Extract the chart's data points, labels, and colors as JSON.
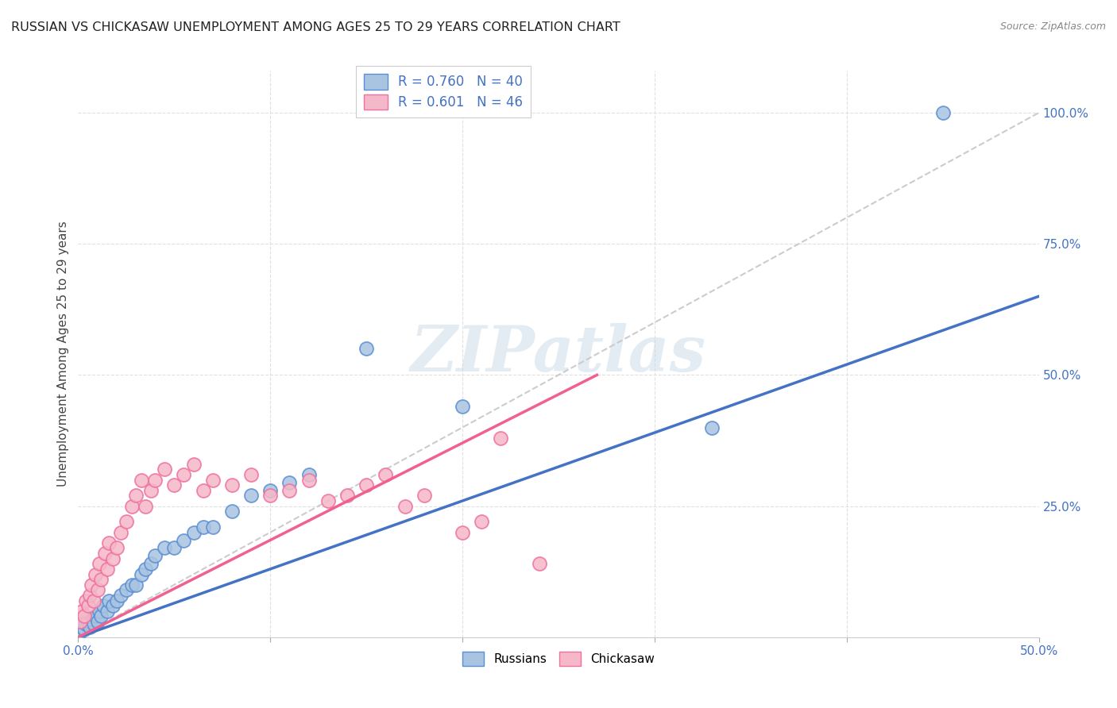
{
  "title": "RUSSIAN VS CHICKASAW UNEMPLOYMENT AMONG AGES 25 TO 29 YEARS CORRELATION CHART",
  "source": "Source: ZipAtlas.com",
  "ylabel": "Unemployment Among Ages 25 to 29 years",
  "xlim": [
    0.0,
    0.5
  ],
  "ylim": [
    0.0,
    1.08
  ],
  "ytick_labels_right": [
    "25.0%",
    "50.0%",
    "75.0%",
    "100.0%"
  ],
  "ytick_positions_right": [
    0.25,
    0.5,
    0.75,
    1.0
  ],
  "background_color": "#ffffff",
  "grid_color": "#e0e0e0",
  "russian_color": "#a8c4e0",
  "chickasaw_color": "#f5b8c8",
  "russian_edge_color": "#5b8fd4",
  "chickasaw_edge_color": "#f070a0",
  "russian_line_color": "#4472c4",
  "chickasaw_line_color": "#f06090",
  "ref_line_color": "#cccccc",
  "legend_text_color": "#4472c4",
  "watermark": "ZIPatlas",
  "r_russian": "R = 0.760",
  "n_russian": "N = 40",
  "r_chickasaw": "R = 0.601",
  "n_chickasaw": "N = 46",
  "russian_x": [
    0.001,
    0.002,
    0.003,
    0.004,
    0.005,
    0.006,
    0.007,
    0.008,
    0.009,
    0.01,
    0.011,
    0.012,
    0.013,
    0.015,
    0.016,
    0.018,
    0.02,
    0.022,
    0.025,
    0.028,
    0.03,
    0.033,
    0.035,
    0.038,
    0.04,
    0.045,
    0.05,
    0.055,
    0.06,
    0.065,
    0.07,
    0.08,
    0.09,
    0.1,
    0.11,
    0.12,
    0.15,
    0.2,
    0.33,
    0.45
  ],
  "russian_y": [
    0.01,
    0.02,
    0.015,
    0.025,
    0.03,
    0.02,
    0.035,
    0.025,
    0.04,
    0.03,
    0.05,
    0.04,
    0.06,
    0.05,
    0.07,
    0.06,
    0.07,
    0.08,
    0.09,
    0.1,
    0.1,
    0.12,
    0.13,
    0.14,
    0.155,
    0.17,
    0.17,
    0.185,
    0.2,
    0.21,
    0.21,
    0.24,
    0.27,
    0.28,
    0.295,
    0.31,
    0.55,
    0.44,
    0.4,
    1.0
  ],
  "chickasaw_x": [
    0.001,
    0.002,
    0.003,
    0.004,
    0.005,
    0.006,
    0.007,
    0.008,
    0.009,
    0.01,
    0.011,
    0.012,
    0.014,
    0.015,
    0.016,
    0.018,
    0.02,
    0.022,
    0.025,
    0.028,
    0.03,
    0.033,
    0.035,
    0.038,
    0.04,
    0.045,
    0.05,
    0.055,
    0.06,
    0.065,
    0.07,
    0.08,
    0.09,
    0.1,
    0.11,
    0.12,
    0.13,
    0.14,
    0.15,
    0.16,
    0.17,
    0.18,
    0.2,
    0.21,
    0.22,
    0.24
  ],
  "chickasaw_y": [
    0.03,
    0.05,
    0.04,
    0.07,
    0.06,
    0.08,
    0.1,
    0.07,
    0.12,
    0.09,
    0.14,
    0.11,
    0.16,
    0.13,
    0.18,
    0.15,
    0.17,
    0.2,
    0.22,
    0.25,
    0.27,
    0.3,
    0.25,
    0.28,
    0.3,
    0.32,
    0.29,
    0.31,
    0.33,
    0.28,
    0.3,
    0.29,
    0.31,
    0.27,
    0.28,
    0.3,
    0.26,
    0.27,
    0.29,
    0.31,
    0.25,
    0.27,
    0.2,
    0.22,
    0.38,
    0.14
  ],
  "russian_line_x": [
    0.0,
    0.5
  ],
  "russian_line_y": [
    0.0,
    0.65
  ],
  "chickasaw_line_x": [
    0.0,
    0.27
  ],
  "chickasaw_line_y": [
    0.0,
    0.5
  ]
}
